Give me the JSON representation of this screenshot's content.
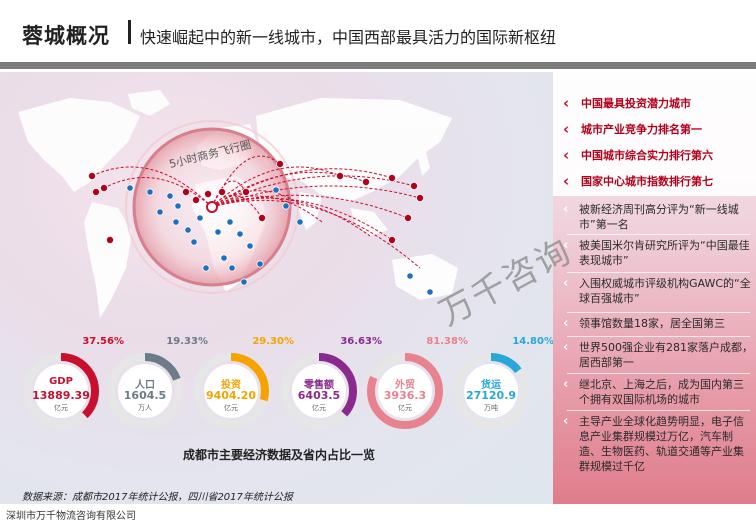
{
  "header": {
    "title": "蓉城概况",
    "subtitle": "快速崛起中的新一线城市，中国西部最具活力的国际新枢纽"
  },
  "map": {
    "circle_label": "5小时商务飞行圈"
  },
  "stats": [
    {
      "label": "GDP",
      "value": "13889.39",
      "unit": "亿元",
      "percent": "37.56%",
      "fraction": 0.3756,
      "color": "#c8102e"
    },
    {
      "label": "人口",
      "value": "1604.5",
      "unit": "万人",
      "percent": "19.33%",
      "fraction": 0.1933,
      "color": "#6b7b88"
    },
    {
      "label": "投资",
      "value": "9404.20",
      "unit": "亿元",
      "percent": "29.30%",
      "fraction": 0.293,
      "color": "#f5a300"
    },
    {
      "label": "零售额",
      "value": "6403.5",
      "unit": "亿元",
      "percent": "36.63%",
      "fraction": 0.3663,
      "color": "#8a2a8f"
    },
    {
      "label": "外贸",
      "value": "3936.3",
      "unit": "亿元",
      "percent": "81.38%",
      "fraction": 0.8138,
      "color": "#e8828f"
    },
    {
      "label": "货运",
      "value": "27120.9",
      "unit": "万吨",
      "percent": "14.80%",
      "fraction": 0.148,
      "color": "#2aa6d8"
    }
  ],
  "caption": "成都市主要经济数据及省内占比一览",
  "source": "数据来源：成都市2017年统计公报，四川省2017年统计公报",
  "footer": "深圳市万千物流咨询有限公司",
  "watermark": "万千咨询",
  "rankings": [
    "中国最具投资潜力城市",
    "城市产业竞争力排名第一",
    "中国城市综合实力排行第六",
    "国家中心城市指数排行第七"
  ],
  "facts": [
    "被新经济周刊高分评为“新一线城市”第一名",
    "被美国米尔肯研究所评为“中国最佳表现城市”",
    "入围权威城市评级机构GAWC的“全球百强城市”",
    "领事馆数量18家，居全国第三",
    "世界500强企业有281家落户成都，居西部第一",
    "继北京、上海之后，成为国内第三个拥有双国际机场的城市",
    "主导产业全球化趋势明显，电子信息产业集群规模过万亿，汽车制造、生物医药、轨道交通等产业集群规模过千亿"
  ],
  "colors": {
    "accent": "#c8102e",
    "route": "#c8102e",
    "dot_blue": "#1f6fbf",
    "dot_red": "#b3001b"
  }
}
